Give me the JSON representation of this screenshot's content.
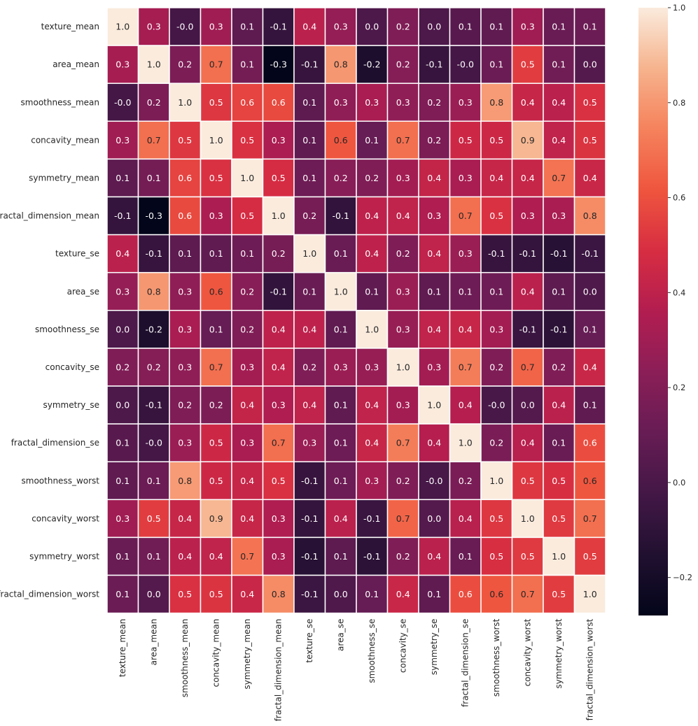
{
  "chart_data": {
    "type": "heatmap",
    "title": "",
    "xlabel": "",
    "ylabel": "",
    "labels": [
      "texture_mean",
      "area_mean",
      "smoothness_mean",
      "concavity_mean",
      "symmetry_mean",
      "fractal_dimension_mean",
      "texture_se",
      "area_se",
      "smoothness_se",
      "concavity_se",
      "symmetry_se",
      "fractal_dimension_se",
      "smoothness_worst",
      "concavity_worst",
      "symmetry_worst",
      "fractal_dimension_worst"
    ],
    "values": [
      [
        1.0,
        0.32,
        -0.02,
        0.3,
        0.07,
        -0.08,
        0.39,
        0.26,
        0.01,
        0.19,
        0.01,
        0.05,
        0.08,
        0.3,
        0.11,
        0.12
      ],
      [
        0.32,
        1.0,
        0.18,
        0.69,
        0.15,
        -0.28,
        -0.07,
        0.8,
        -0.17,
        0.21,
        -0.07,
        -0.02,
        0.12,
        0.54,
        0.14,
        0.04
      ],
      [
        -0.02,
        0.18,
        1.0,
        0.52,
        0.56,
        0.58,
        0.07,
        0.25,
        0.33,
        0.25,
        0.19,
        0.28,
        0.81,
        0.43,
        0.39,
        0.5
      ],
      [
        0.3,
        0.69,
        0.52,
        1.0,
        0.5,
        0.34,
        0.08,
        0.62,
        0.1,
        0.69,
        0.18,
        0.45,
        0.45,
        0.88,
        0.41,
        0.51
      ],
      [
        0.07,
        0.15,
        0.56,
        0.5,
        1.0,
        0.48,
        0.13,
        0.22,
        0.19,
        0.31,
        0.42,
        0.33,
        0.43,
        0.43,
        0.7,
        0.44
      ],
      [
        -0.08,
        -0.28,
        0.58,
        0.34,
        0.48,
        1.0,
        0.16,
        -0.09,
        0.4,
        0.41,
        0.35,
        0.69,
        0.5,
        0.35,
        0.33,
        0.77
      ],
      [
        0.39,
        -0.07,
        0.07,
        0.08,
        0.13,
        0.16,
        1.0,
        0.11,
        0.4,
        0.19,
        0.41,
        0.28,
        -0.07,
        -0.08,
        -0.13,
        -0.05
      ],
      [
        0.26,
        0.8,
        0.25,
        0.62,
        0.22,
        -0.09,
        0.11,
        1.0,
        0.08,
        0.28,
        0.08,
        0.13,
        0.13,
        0.39,
        0.07,
        0.02
      ],
      [
        0.01,
        -0.17,
        0.33,
        0.1,
        0.19,
        0.4,
        0.4,
        0.08,
        1.0,
        0.27,
        0.41,
        0.43,
        0.31,
        -0.06,
        -0.11,
        0.1
      ],
      [
        0.19,
        0.21,
        0.25,
        0.69,
        0.31,
        0.41,
        0.19,
        0.28,
        0.27,
        1.0,
        0.31,
        0.73,
        0.19,
        0.66,
        0.19,
        0.44
      ],
      [
        0.01,
        -0.07,
        0.19,
        0.18,
        0.42,
        0.35,
        0.41,
        0.08,
        0.41,
        0.31,
        1.0,
        0.37,
        -0.01,
        0.04,
        0.39,
        0.08
      ],
      [
        0.05,
        -0.02,
        0.28,
        0.45,
        0.33,
        0.69,
        0.28,
        0.13,
        0.43,
        0.73,
        0.37,
        1.0,
        0.17,
        0.38,
        0.11,
        0.59
      ],
      [
        0.08,
        0.12,
        0.81,
        0.45,
        0.43,
        0.5,
        -0.07,
        0.13,
        0.31,
        0.19,
        -0.01,
        0.17,
        1.0,
        0.52,
        0.49,
        0.62
      ],
      [
        0.3,
        0.54,
        0.43,
        0.88,
        0.43,
        0.35,
        -0.08,
        0.39,
        -0.06,
        0.66,
        0.04,
        0.38,
        0.52,
        1.0,
        0.53,
        0.69
      ],
      [
        0.11,
        0.14,
        0.39,
        0.41,
        0.7,
        0.33,
        -0.13,
        0.07,
        -0.11,
        0.19,
        0.39,
        0.11,
        0.49,
        0.53,
        1.0,
        0.54
      ],
      [
        0.12,
        0.04,
        0.5,
        0.51,
        0.44,
        0.77,
        -0.05,
        0.02,
        0.1,
        0.44,
        0.08,
        0.59,
        0.62,
        0.69,
        0.54,
        1.0
      ]
    ],
    "value_format": "1 decimal",
    "colormap": "rocket",
    "colorbar": {
      "vmin": -0.28,
      "vmax": 1.0,
      "ticks": [
        -0.2,
        0.0,
        0.2,
        0.4,
        0.6,
        0.8,
        1.0
      ],
      "tick_labels": [
        "−0.2",
        "0.0",
        "0.2",
        "0.4",
        "0.6",
        "0.8",
        "1.0"
      ]
    },
    "cell_border_color": "#ffffff",
    "text_color_light": "#ffffff",
    "text_color_dark": "#262626"
  }
}
